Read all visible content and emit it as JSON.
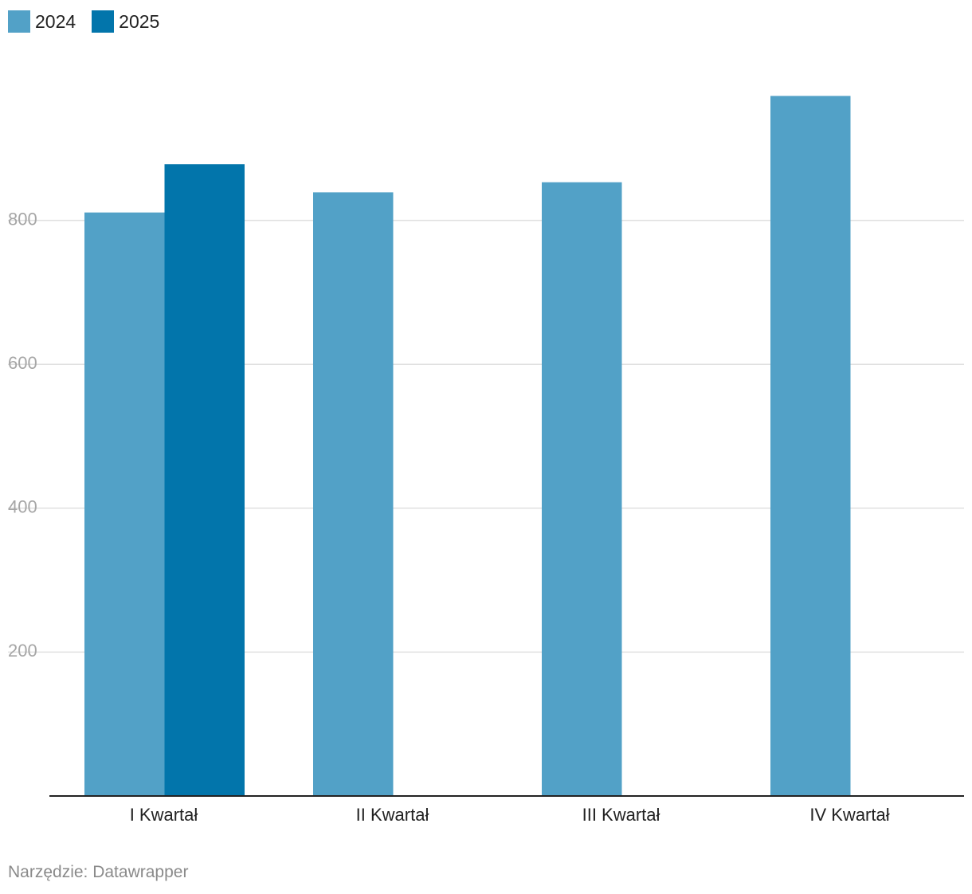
{
  "colors": {
    "series_2024": "#52a1c7",
    "series_2025": "#0275ab",
    "gridline": "#e0e0e0",
    "axis": "#222222"
  },
  "legend": {
    "items": [
      {
        "label": "2024",
        "color": "#52a1c7"
      },
      {
        "label": "2025",
        "color": "#0275ab"
      }
    ]
  },
  "chart_data": {
    "type": "bar",
    "title": "",
    "xlabel": "",
    "ylabel": "",
    "categories": [
      "I Kwartał",
      "II Kwartał",
      "III Kwartał",
      "IV Kwartał"
    ],
    "series": [
      {
        "name": "2024",
        "values": [
          811,
          839,
          853,
          973
        ]
      },
      {
        "name": "2025",
        "values": [
          878,
          null,
          null,
          null
        ]
      }
    ],
    "yticks": [
      200,
      400,
      600,
      800
    ],
    "ylim": [
      0,
      1000
    ],
    "grid": true,
    "legend_position": "top-left"
  },
  "footer": {
    "source": "Narzędzie: Datawrapper"
  }
}
